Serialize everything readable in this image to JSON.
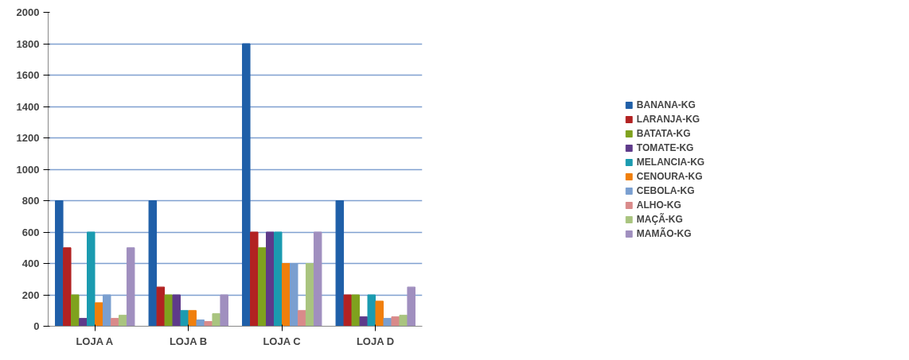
{
  "chart_data": {
    "type": "bar",
    "categories": [
      "LOJA A",
      "LOJA B",
      "LOJA C",
      "LOJA D"
    ],
    "series": [
      {
        "name": "BANANA-KG",
        "color": "#1f5fa8",
        "values": [
          800,
          800,
          1800,
          800
        ]
      },
      {
        "name": "LARANJA-KG",
        "color": "#b22222",
        "values": [
          500,
          250,
          600,
          200
        ]
      },
      {
        "name": "BATATA-KG",
        "color": "#7fa21e",
        "values": [
          200,
          200,
          500,
          200
        ]
      },
      {
        "name": "TOMATE-KG",
        "color": "#5e3a8a",
        "values": [
          50,
          200,
          600,
          60
        ]
      },
      {
        "name": "MELANCIA-KG",
        "color": "#1b9bb0",
        "values": [
          600,
          100,
          600,
          200
        ]
      },
      {
        "name": "CENOURA-KG",
        "color": "#f07f0c",
        "values": [
          150,
          100,
          400,
          160
        ]
      },
      {
        "name": "CEBOLA-KG",
        "color": "#7a9fd0",
        "values": [
          200,
          40,
          400,
          50
        ]
      },
      {
        "name": "ALHO-KG",
        "color": "#d98a8a",
        "values": [
          50,
          30,
          100,
          60
        ]
      },
      {
        "name": "MAÇÃ-KG",
        "color": "#a9c47f",
        "values": [
          70,
          80,
          400,
          70
        ]
      },
      {
        "name": "MAMÃO-KG",
        "color": "#a08fbf",
        "values": [
          500,
          200,
          600,
          250
        ]
      }
    ],
    "ylim": [
      0,
      2000
    ],
    "yticks": [
      0,
      200,
      400,
      600,
      800,
      1000,
      1200,
      1400,
      1600,
      1800,
      2000
    ],
    "grid": "y",
    "legend": "right"
  }
}
